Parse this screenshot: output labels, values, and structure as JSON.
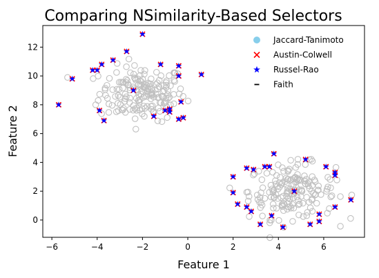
{
  "chart_data": {
    "type": "scatter",
    "title": "Comparing NSimilarity-Based Selectors",
    "xlabel": "Feature 1",
    "ylabel": "Feature 2",
    "xlim": [
      -6.4,
      7.8
    ],
    "ylim": [
      -1.2,
      13.5
    ],
    "xticks": [
      -6,
      -4,
      -2,
      0,
      2,
      4,
      6
    ],
    "yticks": [
      0,
      2,
      4,
      6,
      8,
      10,
      12
    ],
    "grid": false,
    "legend_position": "top-right",
    "background_cluster_centers": [
      [
        -2.0,
        8.8
      ],
      [
        4.6,
        2.0
      ]
    ],
    "series": [
      {
        "name": "Jaccard-Tanimoto",
        "marker": "circle",
        "color": "#87ceeb",
        "points": []
      },
      {
        "name": "Austin-Colwell",
        "marker": "x",
        "color": "#ff0000",
        "points": [
          [
            -5.7,
            8.0
          ],
          [
            -5.1,
            9.8
          ],
          [
            -4.2,
            10.4
          ],
          [
            -4.0,
            10.4
          ],
          [
            -3.8,
            10.8
          ],
          [
            -3.3,
            11.1
          ],
          [
            -2.7,
            11.7
          ],
          [
            -2.0,
            12.9
          ],
          [
            -1.2,
            10.8
          ],
          [
            -0.4,
            10.7
          ],
          [
            -0.4,
            10.0
          ],
          [
            0.6,
            10.1
          ],
          [
            -2.4,
            9.0
          ],
          [
            -3.9,
            7.6
          ],
          [
            -3.7,
            6.9
          ],
          [
            -1.5,
            7.2
          ],
          [
            -1.0,
            7.6
          ],
          [
            -0.8,
            7.7
          ],
          [
            -0.8,
            7.5
          ],
          [
            -0.3,
            8.2
          ],
          [
            -0.4,
            7.0
          ],
          [
            -0.2,
            7.1
          ],
          [
            2.0,
            3.0
          ],
          [
            2.0,
            1.9
          ],
          [
            2.2,
            1.1
          ],
          [
            2.6,
            3.6
          ],
          [
            2.6,
            0.9
          ],
          [
            2.8,
            0.6
          ],
          [
            2.9,
            3.5
          ],
          [
            3.2,
            -0.3
          ],
          [
            3.4,
            3.7
          ],
          [
            3.6,
            3.7
          ],
          [
            3.7,
            0.3
          ],
          [
            3.8,
            4.6
          ],
          [
            4.2,
            -0.5
          ],
          [
            4.7,
            2.0
          ],
          [
            5.2,
            4.2
          ],
          [
            5.4,
            -0.3
          ],
          [
            5.8,
            0.4
          ],
          [
            5.8,
            -0.1
          ],
          [
            6.1,
            3.7
          ],
          [
            6.5,
            3.3
          ],
          [
            6.5,
            3.1
          ],
          [
            6.5,
            0.9
          ],
          [
            7.2,
            1.4
          ]
        ]
      },
      {
        "name": "Russel-Rao",
        "marker": "star",
        "color": "#0000ff",
        "points": [
          [
            -5.7,
            8.0
          ],
          [
            -5.1,
            9.8
          ],
          [
            -4.2,
            10.4
          ],
          [
            -4.0,
            10.4
          ],
          [
            -3.8,
            10.8
          ],
          [
            -3.3,
            11.1
          ],
          [
            -2.7,
            11.7
          ],
          [
            -2.0,
            12.9
          ],
          [
            -1.2,
            10.8
          ],
          [
            -0.4,
            10.7
          ],
          [
            -0.4,
            10.0
          ],
          [
            0.6,
            10.1
          ],
          [
            -2.4,
            9.0
          ],
          [
            -3.9,
            7.6
          ],
          [
            -3.7,
            6.9
          ],
          [
            -1.5,
            7.2
          ],
          [
            -1.0,
            7.6
          ],
          [
            -0.8,
            7.7
          ],
          [
            -0.8,
            7.5
          ],
          [
            -0.3,
            8.2
          ],
          [
            -0.4,
            7.0
          ],
          [
            -0.2,
            7.1
          ],
          [
            2.0,
            3.0
          ],
          [
            2.0,
            1.9
          ],
          [
            2.2,
            1.1
          ],
          [
            2.6,
            3.6
          ],
          [
            2.6,
            0.9
          ],
          [
            2.8,
            0.6
          ],
          [
            2.9,
            3.5
          ],
          [
            3.2,
            -0.3
          ],
          [
            3.4,
            3.7
          ],
          [
            3.6,
            3.7
          ],
          [
            3.7,
            0.3
          ],
          [
            3.8,
            4.6
          ],
          [
            4.2,
            -0.5
          ],
          [
            4.7,
            2.0
          ],
          [
            5.2,
            4.2
          ],
          [
            5.4,
            -0.3
          ],
          [
            5.8,
            0.4
          ],
          [
            5.8,
            -0.1
          ],
          [
            6.1,
            3.7
          ],
          [
            6.5,
            3.3
          ],
          [
            6.5,
            3.1
          ],
          [
            6.5,
            0.9
          ],
          [
            7.2,
            1.4
          ]
        ]
      },
      {
        "name": "Faith",
        "marker": "hline",
        "color": "#000000",
        "points": []
      }
    ]
  }
}
